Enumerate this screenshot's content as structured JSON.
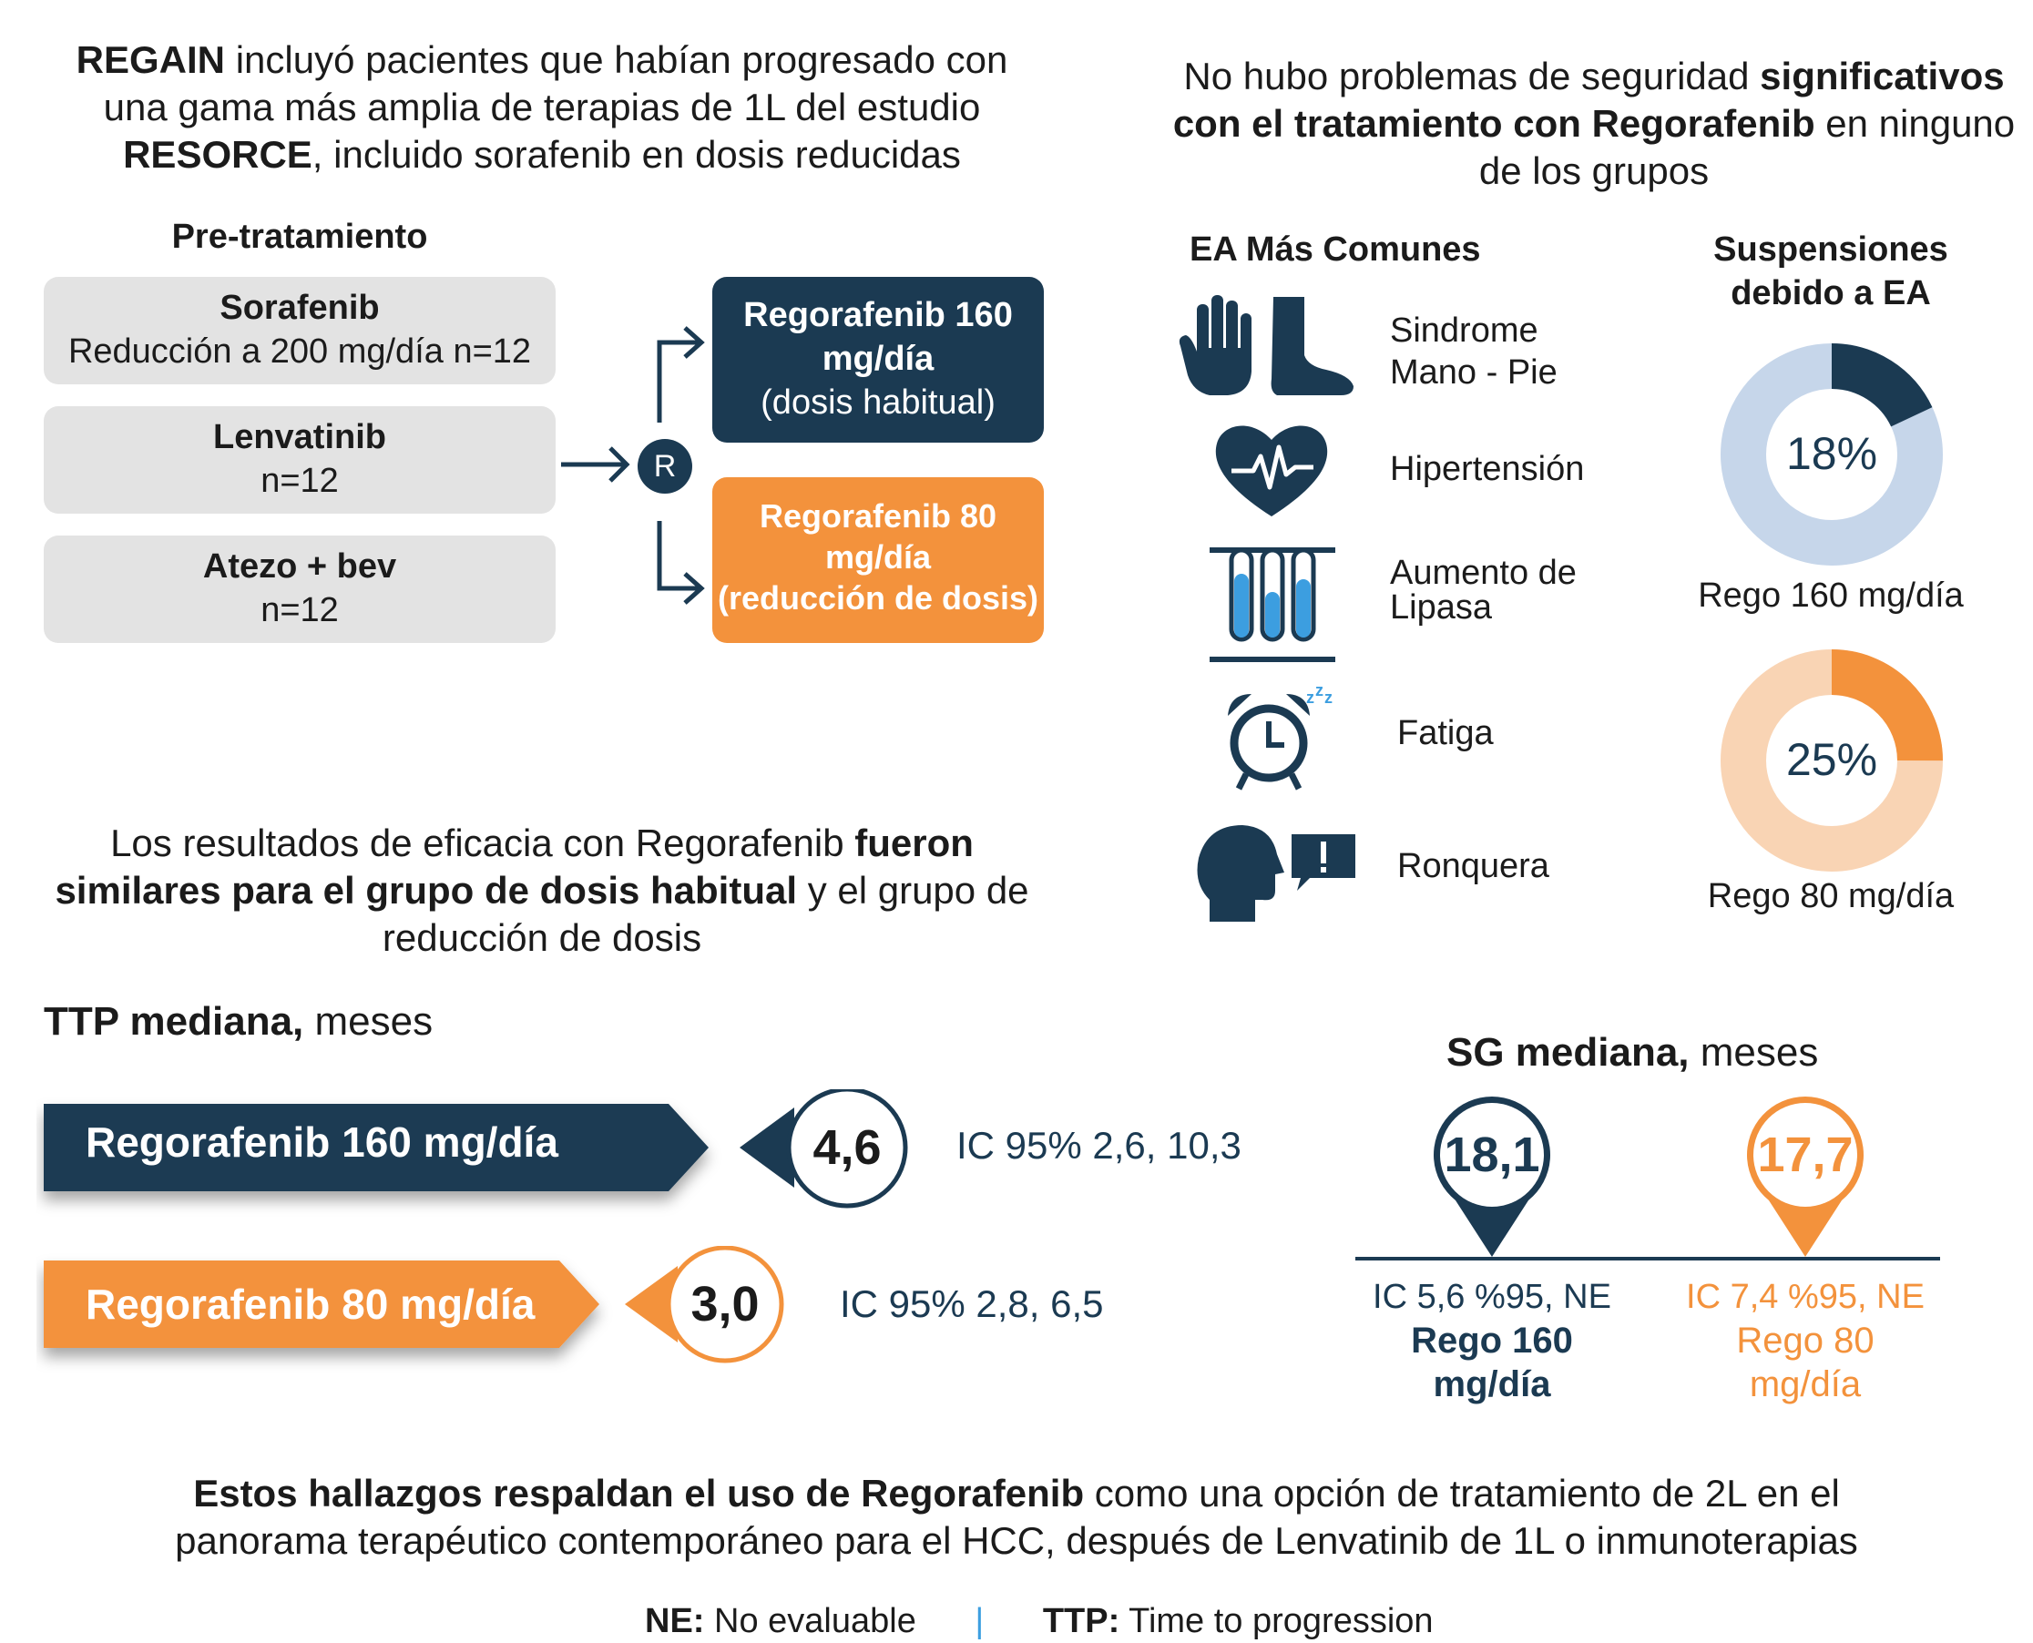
{
  "top_left": {
    "heading_b1": "REGAIN",
    "heading_t1": " incluyó pacientes que habían progresado con",
    "heading_t2": "una gama más amplia de terapias de 1L del estudio",
    "heading_b2": "RESORCE",
    "heading_t3": ", incluido sorafenib en dosis reducidas"
  },
  "pretreatment": {
    "title": "Pre-tratamiento",
    "items": [
      {
        "name": "Sorafenib",
        "detail": "Reducción a 200 mg/día n=12"
      },
      {
        "name": "Lenvatinib",
        "detail": "n=12"
      },
      {
        "name": "Atezo + bev",
        "detail": "n=12"
      }
    ],
    "randomize_symbol": "R"
  },
  "arms": {
    "high": {
      "line1": "Regorafenib 160",
      "line2": "mg/día",
      "line3": "(dosis habitual)"
    },
    "low": {
      "line1": "Regorafenib 80",
      "line2": "mg/día",
      "line3": "(reducción de dosis)"
    }
  },
  "top_right": {
    "t1": "No hubo problemas de seguridad ",
    "b1": "significativos",
    "b2": "con el tratamiento con Regorafenib",
    "t2": " en ninguno",
    "t3": "de los grupos"
  },
  "adverse_events": {
    "title": "EA Más Comunes",
    "items": [
      {
        "label1": "Sindrome",
        "label2": "Mano - Pie",
        "icon": "hand-foot-icon"
      },
      {
        "label1": "Hipertensión",
        "label2": "",
        "icon": "heart-icon"
      },
      {
        "label1": "Aumento de",
        "label2": "Lipasa",
        "icon": "test-tubes-icon"
      },
      {
        "label1": "Fatiga",
        "label2": "",
        "icon": "alarm-clock-icon"
      },
      {
        "label1": "Ronquera",
        "label2": "",
        "icon": "head-speech-icon"
      }
    ]
  },
  "discontinuations": {
    "title1": "Suspensiones",
    "title2": "debido a EA",
    "donuts": [
      {
        "value": 18,
        "label": "18%",
        "caption": "Rego 160 mg/día",
        "color": "#1b3a52",
        "track": "#c6d6ea"
      },
      {
        "value": 25,
        "label": "25%",
        "caption": "Rego 80 mg/día",
        "color": "#f3923c",
        "track": "#f9d4b4"
      }
    ]
  },
  "efficacy": {
    "t1": "Los resultados de eficacia con Regorafenib ",
    "b1": "fueron",
    "b2": "similares para el grupo de dosis habitual",
    "t2": " y el grupo de",
    "t3": "reducción de dosis"
  },
  "ttp": {
    "title_b": "TTP mediana,",
    "title_t": " meses",
    "rows": [
      {
        "label": "Regorafenib 160 mg/día",
        "value": "4,6",
        "ci": "IC 95% 2,6, 10,3",
        "color": "#1b3a52"
      },
      {
        "label": "Regorafenib 80 mg/día",
        "value": "3,0",
        "ci": "IC 95% 2,8, 6,5",
        "color": "#f3923c"
      }
    ]
  },
  "os": {
    "title_b": "SG mediana,",
    "title_t": " meses",
    "pins": [
      {
        "value": "18,1",
        "ci": "IC 5,6 %95, NE",
        "label1": "Rego 160",
        "label2": "mg/día",
        "color": "#1b3a52"
      },
      {
        "value": "17,7",
        "ci": "IC 7,4 %95, NE",
        "label1": "Rego 80",
        "label2": "mg/día",
        "color": "#f3923c"
      }
    ]
  },
  "conclusion": {
    "b1": "Estos hallazgos respaldan el uso de Regorafenib",
    "t1": " como una opción de tratamiento de 2L en el",
    "t2": "panorama terapéutico contemporáneo para el HCC, después de Lenvatinib de 1L o inmunoterapias"
  },
  "footnote": {
    "ne_b": "NE:",
    "ne_t": " No evaluable",
    "sep": "|",
    "ttp_b": "TTP:",
    "ttp_t": " Time to progression"
  }
}
